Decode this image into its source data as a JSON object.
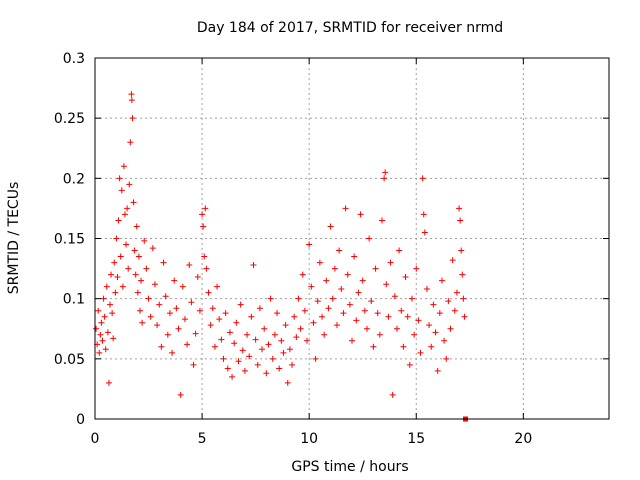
{
  "chart_data": {
    "type": "scatter",
    "title": "Day 184 of 2017, SRMTID for receiver nrmd",
    "xlabel": "GPS time / hours",
    "ylabel": "SRMTID / TECUs",
    "xlim": [
      0,
      24
    ],
    "ylim": [
      0,
      0.3
    ],
    "xticks": [
      0,
      5,
      10,
      15,
      20
    ],
    "xtick_labels": [
      "0",
      "5",
      "10",
      "15",
      "20"
    ],
    "yticks": [
      0,
      0.05,
      0.1,
      0.15,
      0.2,
      0.25,
      0.3
    ],
    "ytick_labels": [
      "0",
      "0.05",
      "0.1",
      "0.15",
      "0.2",
      "0.25",
      "0.3"
    ],
    "grid": true,
    "marker": "+",
    "color": "#ff0000",
    "series": [
      {
        "name": "SRMTID",
        "points": [
          [
            0.05,
            0.075
          ],
          [
            0.1,
            0.062
          ],
          [
            0.15,
            0.09
          ],
          [
            0.2,
            0.055
          ],
          [
            0.25,
            0.07
          ],
          [
            0.3,
            0.08
          ],
          [
            0.35,
            0.065
          ],
          [
            0.4,
            0.1
          ],
          [
            0.45,
            0.085
          ],
          [
            0.5,
            0.058
          ],
          [
            0.55,
            0.11
          ],
          [
            0.6,
            0.072
          ],
          [
            0.65,
            0.03
          ],
          [
            0.7,
            0.095
          ],
          [
            0.75,
            0.12
          ],
          [
            0.8,
            0.088
          ],
          [
            0.85,
            0.067
          ],
          [
            0.9,
            0.13
          ],
          [
            0.95,
            0.105
          ],
          [
            1.0,
            0.15
          ],
          [
            1.05,
            0.118
          ],
          [
            1.1,
            0.165
          ],
          [
            1.15,
            0.2
          ],
          [
            1.2,
            0.135
          ],
          [
            1.25,
            0.19
          ],
          [
            1.3,
            0.11
          ],
          [
            1.35,
            0.21
          ],
          [
            1.4,
            0.17
          ],
          [
            1.45,
            0.145
          ],
          [
            1.5,
            0.175
          ],
          [
            1.55,
            0.125
          ],
          [
            1.6,
            0.195
          ],
          [
            1.65,
            0.23
          ],
          [
            1.7,
            0.27
          ],
          [
            1.72,
            0.265
          ],
          [
            1.75,
            0.25
          ],
          [
            1.8,
            0.18
          ],
          [
            1.85,
            0.14
          ],
          [
            1.9,
            0.12
          ],
          [
            1.95,
            0.16
          ],
          [
            2.0,
            0.105
          ],
          [
            2.05,
            0.135
          ],
          [
            2.1,
            0.09
          ],
          [
            2.15,
            0.115
          ],
          [
            2.2,
            0.08
          ],
          [
            2.3,
            0.148
          ],
          [
            2.4,
            0.125
          ],
          [
            2.5,
            0.1
          ],
          [
            2.6,
            0.085
          ],
          [
            2.7,
            0.142
          ],
          [
            2.8,
            0.112
          ],
          [
            2.9,
            0.078
          ],
          [
            3.0,
            0.095
          ],
          [
            3.1,
            0.06
          ],
          [
            3.2,
            0.13
          ],
          [
            3.3,
            0.102
          ],
          [
            3.4,
            0.07
          ],
          [
            3.5,
            0.088
          ],
          [
            3.6,
            0.055
          ],
          [
            3.7,
            0.115
          ],
          [
            3.8,
            0.092
          ],
          [
            3.9,
            0.075
          ],
          [
            4.0,
            0.02
          ],
          [
            4.1,
            0.11
          ],
          [
            4.2,
            0.083
          ],
          [
            4.3,
            0.062
          ],
          [
            4.4,
            0.128
          ],
          [
            4.5,
            0.097
          ],
          [
            4.6,
            0.045
          ],
          [
            4.7,
            0.071
          ],
          [
            4.8,
            0.118
          ],
          [
            4.9,
            0.09
          ],
          [
            5.0,
            0.17
          ],
          [
            5.05,
            0.16
          ],
          [
            5.1,
            0.135
          ],
          [
            5.15,
            0.175
          ],
          [
            5.2,
            0.125
          ],
          [
            5.3,
            0.105
          ],
          [
            5.4,
            0.078
          ],
          [
            5.5,
            0.092
          ],
          [
            5.6,
            0.06
          ],
          [
            5.7,
            0.11
          ],
          [
            5.8,
            0.083
          ],
          [
            5.9,
            0.066
          ],
          [
            6.0,
            0.05
          ],
          [
            6.1,
            0.088
          ],
          [
            6.2,
            0.042
          ],
          [
            6.3,
            0.072
          ],
          [
            6.4,
            0.035
          ],
          [
            6.5,
            0.063
          ],
          [
            6.6,
            0.08
          ],
          [
            6.7,
            0.048
          ],
          [
            6.8,
            0.095
          ],
          [
            6.9,
            0.057
          ],
          [
            7.0,
            0.04
          ],
          [
            7.1,
            0.07
          ],
          [
            7.2,
            0.052
          ],
          [
            7.3,
            0.085
          ],
          [
            7.4,
            0.128
          ],
          [
            7.5,
            0.066
          ],
          [
            7.6,
            0.045
          ],
          [
            7.7,
            0.092
          ],
          [
            7.8,
            0.058
          ],
          [
            7.9,
            0.075
          ],
          [
            8.0,
            0.038
          ],
          [
            8.1,
            0.062
          ],
          [
            8.2,
            0.1
          ],
          [
            8.3,
            0.05
          ],
          [
            8.4,
            0.07
          ],
          [
            8.5,
            0.088
          ],
          [
            8.6,
            0.042
          ],
          [
            8.7,
            0.065
          ],
          [
            8.8,
            0.055
          ],
          [
            8.9,
            0.078
          ],
          [
            9.0,
            0.03
          ],
          [
            9.1,
            0.058
          ],
          [
            9.2,
            0.045
          ],
          [
            9.3,
            0.085
          ],
          [
            9.4,
            0.068
          ],
          [
            9.5,
            0.1
          ],
          [
            9.6,
            0.075
          ],
          [
            9.7,
            0.12
          ],
          [
            9.8,
            0.09
          ],
          [
            9.9,
            0.065
          ],
          [
            10.0,
            0.145
          ],
          [
            10.1,
            0.11
          ],
          [
            10.2,
            0.08
          ],
          [
            10.3,
            0.05
          ],
          [
            10.4,
            0.098
          ],
          [
            10.5,
            0.13
          ],
          [
            10.6,
            0.085
          ],
          [
            10.7,
            0.07
          ],
          [
            10.8,
            0.115
          ],
          [
            10.9,
            0.092
          ],
          [
            11.0,
            0.16
          ],
          [
            11.1,
            0.1
          ],
          [
            11.2,
            0.125
          ],
          [
            11.3,
            0.078
          ],
          [
            11.4,
            0.14
          ],
          [
            11.5,
            0.108
          ],
          [
            11.6,
            0.088
          ],
          [
            11.7,
            0.175
          ],
          [
            11.8,
            0.12
          ],
          [
            11.9,
            0.095
          ],
          [
            12.0,
            0.065
          ],
          [
            12.1,
            0.135
          ],
          [
            12.2,
            0.082
          ],
          [
            12.3,
            0.105
          ],
          [
            12.4,
            0.17
          ],
          [
            12.5,
            0.115
          ],
          [
            12.6,
            0.09
          ],
          [
            12.7,
            0.075
          ],
          [
            12.8,
            0.15
          ],
          [
            12.9,
            0.098
          ],
          [
            13.0,
            0.06
          ],
          [
            13.1,
            0.125
          ],
          [
            13.2,
            0.088
          ],
          [
            13.3,
            0.07
          ],
          [
            13.4,
            0.165
          ],
          [
            13.5,
            0.2
          ],
          [
            13.55,
            0.205
          ],
          [
            13.6,
            0.112
          ],
          [
            13.7,
            0.085
          ],
          [
            13.8,
            0.13
          ],
          [
            13.9,
            0.02
          ],
          [
            14.0,
            0.102
          ],
          [
            14.1,
            0.075
          ],
          [
            14.2,
            0.14
          ],
          [
            14.3,
            0.09
          ],
          [
            14.4,
            0.06
          ],
          [
            14.5,
            0.118
          ],
          [
            14.6,
            0.085
          ],
          [
            14.7,
            0.045
          ],
          [
            14.8,
            0.1
          ],
          [
            14.9,
            0.07
          ],
          [
            15.0,
            0.125
          ],
          [
            15.1,
            0.082
          ],
          [
            15.2,
            0.055
          ],
          [
            15.3,
            0.2
          ],
          [
            15.35,
            0.17
          ],
          [
            15.4,
            0.155
          ],
          [
            15.5,
            0.108
          ],
          [
            15.6,
            0.078
          ],
          [
            15.7,
            0.06
          ],
          [
            15.8,
            0.095
          ],
          [
            15.9,
            0.072
          ],
          [
            16.0,
            0.04
          ],
          [
            16.1,
            0.088
          ],
          [
            16.2,
            0.115
          ],
          [
            16.3,
            0.065
          ],
          [
            16.4,
            0.05
          ],
          [
            16.5,
            0.098
          ],
          [
            16.6,
            0.075
          ],
          [
            16.7,
            0.132
          ],
          [
            16.8,
            0.09
          ],
          [
            16.9,
            0.105
          ],
          [
            17.0,
            0.175
          ],
          [
            17.05,
            0.165
          ],
          [
            17.1,
            0.14
          ],
          [
            17.15,
            0.12
          ],
          [
            17.2,
            0.1
          ],
          [
            17.25,
            0.085
          ],
          [
            17.3,
            0.0
          ]
        ]
      }
    ]
  }
}
